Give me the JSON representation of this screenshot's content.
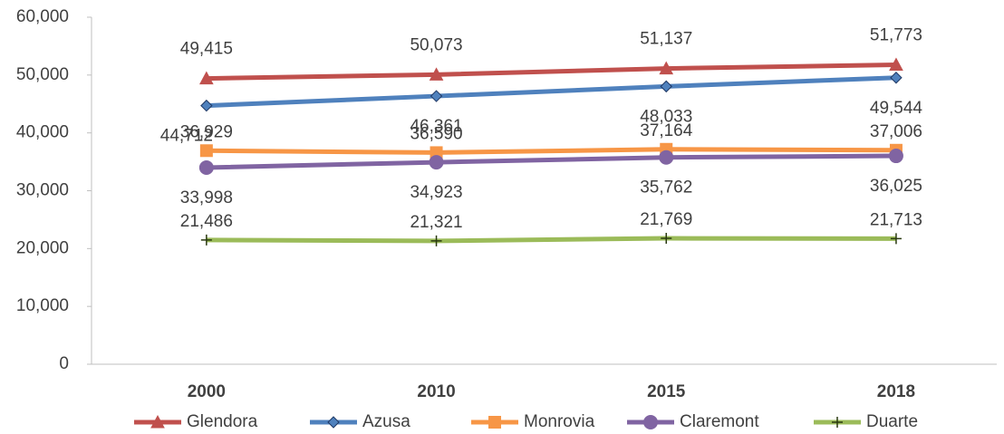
{
  "chart_data": {
    "type": "line",
    "categories": [
      "2000",
      "2010",
      "2015",
      "2018"
    ],
    "series": [
      {
        "name": "Glendora",
        "color": "#c0504d",
        "marker": "triangle",
        "values": [
          49415,
          50073,
          51137,
          51773
        ],
        "value_labels": [
          "49,415",
          "50,073",
          "51,137",
          "51,773"
        ]
      },
      {
        "name": "Azusa",
        "color": "#4f81bd",
        "marker": "diamond",
        "values": [
          44712,
          46361,
          48033,
          49544
        ],
        "value_labels": [
          "44,712",
          "46,361",
          "48,033",
          "49,544"
        ]
      },
      {
        "name": "Monrovia",
        "color": "#f79646",
        "marker": "square",
        "values": [
          36929,
          36590,
          37164,
          37006
        ],
        "value_labels": [
          "36,929",
          "36,590",
          "37,164",
          "37,006"
        ]
      },
      {
        "name": "Claremont",
        "color": "#8064a2",
        "marker": "circle",
        "values": [
          33998,
          34923,
          35762,
          36025
        ],
        "value_labels": [
          "33,998",
          "34,923",
          "35,762",
          "36,025"
        ]
      },
      {
        "name": "Duarte",
        "color": "#9bbb59",
        "marker": "plus",
        "values": [
          21486,
          21321,
          21769,
          21713
        ],
        "value_labels": [
          "21,486",
          "21,321",
          "21,769",
          "21,713"
        ]
      }
    ],
    "ylim": [
      0,
      60000
    ],
    "yticks": [
      0,
      {
        "value": 10000,
        "label": "10,000"
      },
      {
        "value": 20000,
        "label": "20,000"
      },
      {
        "value": 30000,
        "label": "30,000"
      },
      {
        "value": 40000,
        "label": "40,000"
      },
      {
        "value": 50000,
        "label": "50,000"
      },
      {
        "value": 60000,
        "label": "60,000"
      }
    ],
    "grid": false,
    "legend": "bottom"
  }
}
